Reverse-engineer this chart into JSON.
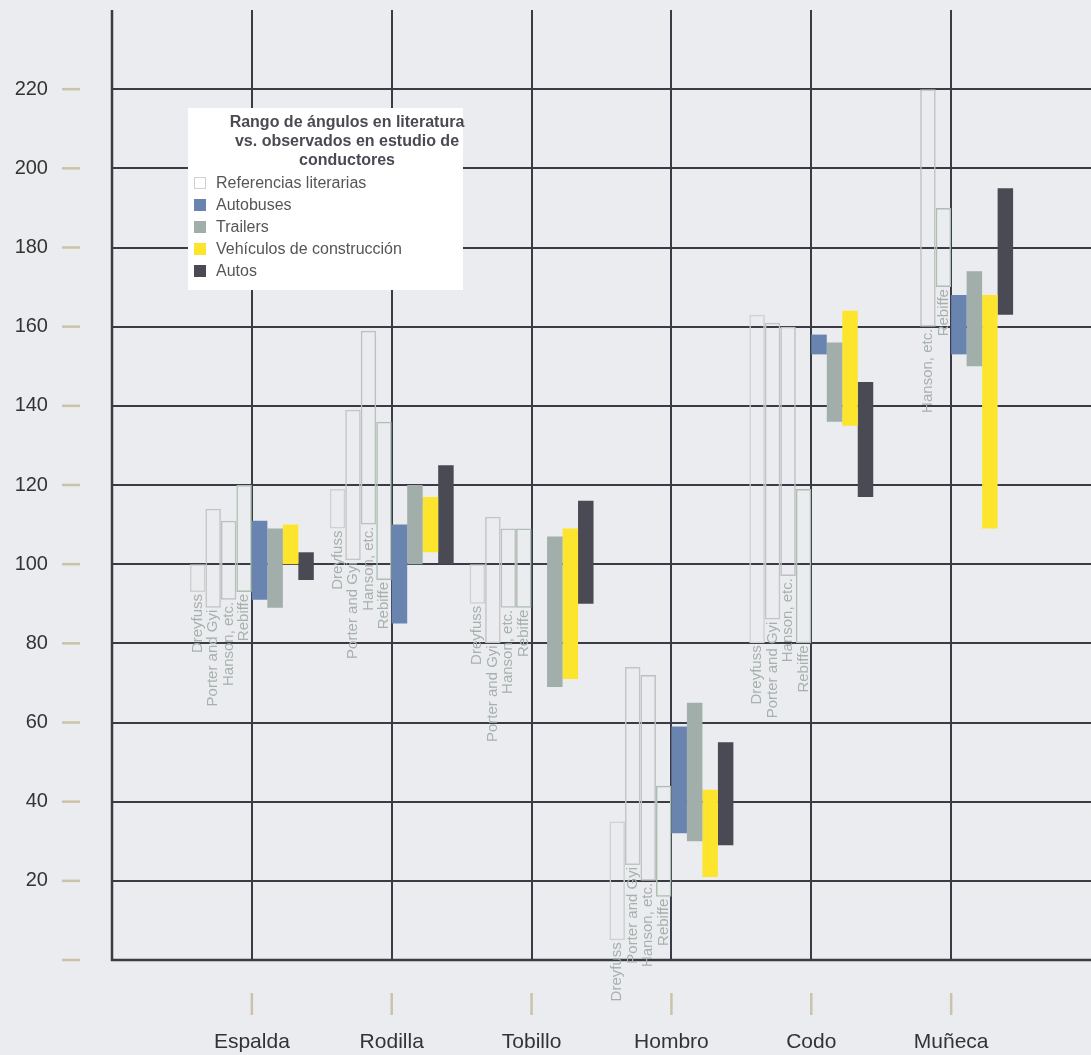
{
  "chart_data": {
    "type": "bar",
    "legend_title": "Rango de ángulos en literatura vs. observados en estudio de conductores",
    "categories": [
      "Espalda",
      "Rodilla",
      "Tobillo",
      "Hombro",
      "Codo",
      "Muñeca"
    ],
    "series": [
      {
        "name": "Referencias literarias",
        "color": "#d0d0d0",
        "base": [
          93,
          109,
          90,
          5,
          80,
          null
        ],
        "values": [
          7,
          10,
          10,
          30,
          83,
          null
        ],
        "value_labels": [
          "Dreyfuss",
          "Dreyfuss",
          "Dreyfuss",
          "Dreyfuss",
          "Dreyfuss",
          null
        ]
      },
      {
        "color": "#c4c4c4",
        "base": [
          89,
          101,
          80,
          24,
          86,
          null
        ],
        "values": [
          25,
          38,
          32,
          50,
          75,
          null
        ],
        "value_labels": [
          "Porter and Gyi",
          "Porter and Gyi",
          "Porter and Gyi",
          "Porter and Gyi",
          "Porter and Gyi",
          null
        ]
      },
      {
        "color": "#bfbfbf",
        "base": [
          91,
          110,
          89,
          20,
          97,
          160
        ],
        "values": [
          20,
          49,
          20,
          52,
          63,
          60
        ],
        "value_labels": [
          "Hanson, etc.",
          "Hanson, etc.",
          "Hanson, etc.",
          "Hanson, etc.",
          "Hanson, etc.",
          "Hanson, etc."
        ]
      },
      {
        "color": "#abc0b1",
        "base": [
          93,
          96,
          89,
          16,
          80,
          170
        ],
        "values": [
          27,
          40,
          20,
          28,
          39,
          20
        ],
        "value_labels": [
          "Rebiffe",
          "Rebiffe",
          "Rebiffe",
          "Rebiffe",
          "Rebiffe",
          "Rebiffe"
        ]
      },
      {
        "name": "Autobuses",
        "color": "#6a84b0",
        "base": [
          91,
          85,
          null,
          32,
          153,
          153
        ],
        "values": [
          20,
          25,
          null,
          27,
          5,
          15
        ]
      },
      {
        "name": "Trailers",
        "color": "#a1aea9",
        "base": [
          89,
          100,
          69,
          30,
          136,
          150
        ],
        "values": [
          20,
          20,
          38,
          35,
          20,
          24
        ]
      },
      {
        "name": "Vehículos de construcción",
        "color": "#fde52e",
        "base": [
          100,
          103,
          71,
          21,
          135,
          109
        ],
        "values": [
          10,
          14,
          38,
          22,
          29,
          59
        ]
      },
      {
        "name": "Autos",
        "color": "#4a4a54",
        "base": [
          96,
          100,
          90,
          29,
          117,
          163
        ],
        "values": [
          7,
          25,
          26,
          26,
          29,
          32
        ]
      }
    ],
    "ylim": [
      0,
      240
    ],
    "yticks": [
      {
        "value": 0,
        "label": null
      },
      20,
      40,
      60,
      80,
      100,
      120,
      140,
      160,
      180,
      200,
      220
    ],
    "grid": true,
    "legend": "top left"
  }
}
